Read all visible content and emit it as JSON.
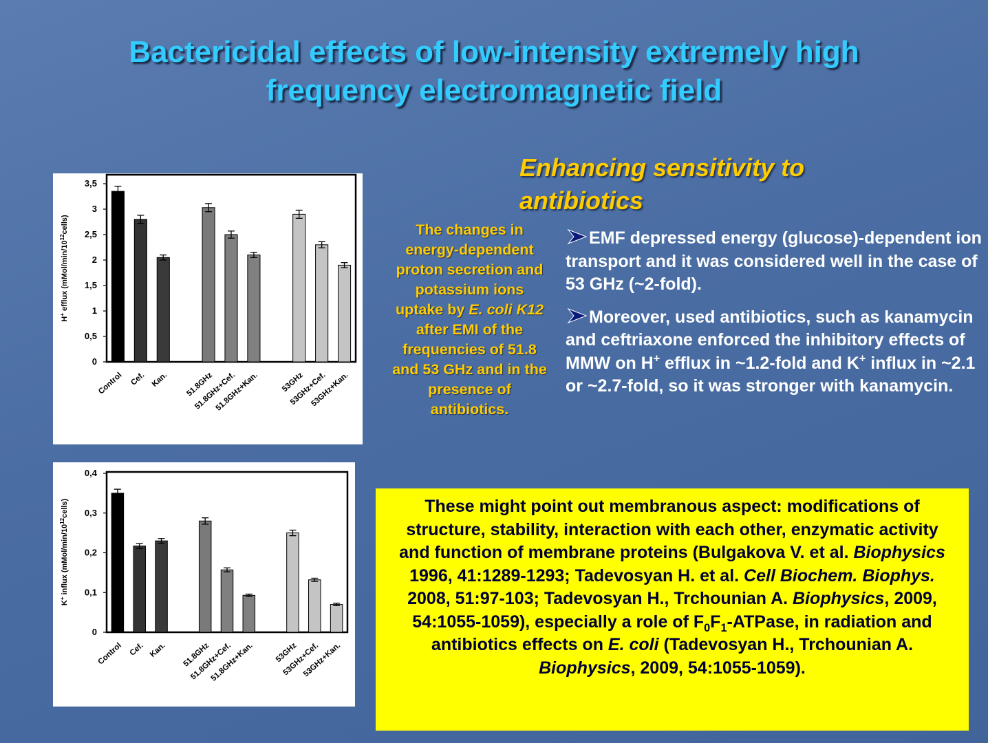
{
  "title": "Bactericidal effects of low-intensity extremely high frequency electromagnetic field",
  "subtitle": "Enhancing sensitivity to antibiotics",
  "caption": [
    "The changes in energy-dependent proton secretion and potassium ions uptake by ",
    "E. coli K12",
    " after EMI of the frequencies of 51.8 and 53 GHz and in the presence of antibiotics."
  ],
  "bullets": [
    [
      "EMF depressed energy (glucose)-dependent ion transport and it was considered well in the case of 53 GHz (~2-fold)."
    ],
    [
      "Moreover, used antibiotics, such as kanamycin and ceftriaxone enforced the inhibitory effects of MMW on H",
      "+",
      " efflux in ~1.2-fold and K",
      "+",
      " influx in ~2.1 or ~2.7-fold, so it was stronger with kanamycin."
    ]
  ],
  "note": [
    "These might point out membranous aspect: modifications of structure, stability, interaction with each other, enzymatic activity and function of membrane proteins (Bulgakova V. et al. ",
    "Biophysics",
    " 1996, 41:1289-1293; Tadevosyan H. et al. ",
    "Cell Biochem. Biophys.",
    "  2008, 51:97-103; Tadevosyan H., Trchounian A. ",
    "Biophysics",
    ", 2009, 54:1055-1059), especially a role of F",
    "0",
    "F",
    "1",
    "-ATPase, in radiation and antibiotics effects on ",
    "E. coli",
    " (Tadevosyan H., Trchounian A. ",
    "Biophysics",
    ", 2009, 54:1055-1059)."
  ],
  "chart_data": [
    {
      "type": "bar",
      "y_label": [
        "H",
        "+",
        " efflux  (mMol/min/10",
        "12",
        "cells)"
      ],
      "categories": [
        "Control",
        "Cef.",
        "Kan.",
        null,
        "51.8GHz",
        "51.8GHz+Cef.",
        "51.8GHz+Kan.",
        null,
        "53GHz",
        "53GHz+Cef.",
        "53GHz+Kan."
      ],
      "values": [
        3.35,
        2.8,
        2.05,
        null,
        3.03,
        2.5,
        2.1,
        null,
        2.9,
        2.3,
        1.9
      ],
      "errors": [
        0.1,
        0.08,
        0.05,
        null,
        0.08,
        0.07,
        0.05,
        null,
        0.08,
        0.06,
        0.05
      ],
      "colors": [
        "#000000",
        "#333333",
        "#3a3a3a",
        null,
        "#7a7a7a",
        "#808080",
        "#808080",
        null,
        "#c4c4c4",
        "#c4c4c4",
        "#c4c4c4"
      ],
      "ylim": [
        0,
        3.5
      ],
      "yticks": [
        0,
        {
          "value": 0.5,
          "label": "0,5"
        },
        1,
        {
          "value": 1.5,
          "label": "1,5"
        },
        2,
        {
          "value": 2.5,
          "label": "2,5"
        },
        3,
        {
          "value": 3.5,
          "label": "3,5"
        }
      ]
    },
    {
      "type": "bar",
      "y_label": [
        "K",
        "+",
        " influx (mMol/min/10",
        "12",
        "cells)"
      ],
      "categories": [
        "Control",
        "Cef.",
        "Kan.",
        null,
        "51.8GHz",
        "51.8GHz+Cef.",
        "51.8GHz+Kan.",
        null,
        "53GHz",
        "53GHz+Cef.",
        "53GHz+Kan."
      ],
      "values": [
        0.35,
        0.217,
        0.23,
        null,
        0.28,
        0.157,
        0.093,
        null,
        0.25,
        0.132,
        0.07
      ],
      "errors": [
        0.01,
        0.006,
        0.006,
        null,
        0.008,
        0.005,
        0.003,
        null,
        0.007,
        0.004,
        0.003
      ],
      "colors": [
        "#000000",
        "#333333",
        "#3a3a3a",
        null,
        "#7a7a7a",
        "#808080",
        "#808080",
        null,
        "#c4c4c4",
        "#c4c4c4",
        "#c4c4c4"
      ],
      "ylim": [
        0,
        0.4
      ],
      "yticks": [
        0,
        {
          "value": 0.1,
          "label": "0,1"
        },
        {
          "value": 0.2,
          "label": "0,2"
        },
        {
          "value": 0.3,
          "label": "0,3"
        },
        {
          "value": 0.4,
          "label": "0,4"
        }
      ]
    }
  ]
}
